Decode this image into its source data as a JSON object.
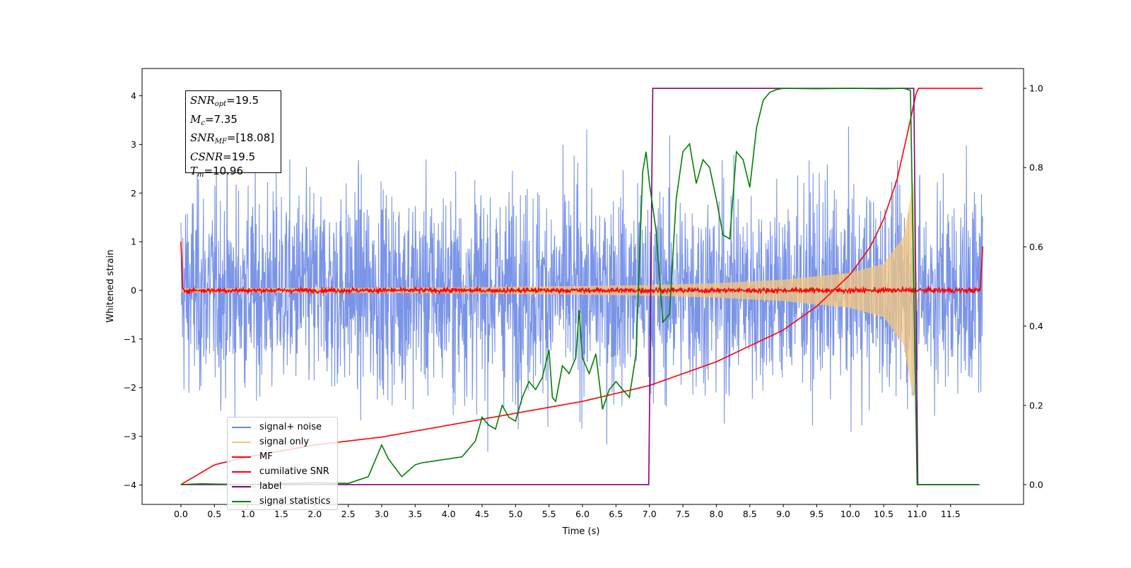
{
  "chart_data": {
    "type": "line",
    "xlabel": "Time (s)",
    "ylabel": "Whitened strain",
    "xlim": [
      -0.58,
      12.59
    ],
    "ylim_left": [
      -4.4,
      4.56
    ],
    "ylim_right": [
      -0.05,
      1.05
    ],
    "x_ticks": [
      0.0,
      0.5,
      1.0,
      1.5,
      2.0,
      2.5,
      3.0,
      3.5,
      4.0,
      4.5,
      5.0,
      5.5,
      6.0,
      6.5,
      7.0,
      7.5,
      8.0,
      8.5,
      9.0,
      9.5,
      10.0,
      10.5,
      11.0,
      11.5
    ],
    "x_tick_labels": [
      "0.0",
      "0.5",
      "1.0",
      "1.5",
      "2.0",
      "2.5",
      "3.0",
      "3.5",
      "4.0",
      "4.5",
      "5.0",
      "5.5",
      "6.0",
      "6.5",
      "7.0",
      "7.5",
      "8.0",
      "8.5",
      "9.0",
      "9.5",
      "10.0",
      "10.5",
      "11.0",
      "11.5"
    ],
    "y_ticks_left": [
      -4,
      -3,
      -2,
      -1,
      0,
      1,
      2,
      3,
      4
    ],
    "y_tick_labels_left": [
      "−4",
      "−3",
      "−2",
      "−1",
      "0",
      "1",
      "2",
      "3",
      "4"
    ],
    "y_ticks_right": [
      0.0,
      0.2,
      0.4,
      0.6,
      0.8,
      1.0
    ],
    "y_tick_labels_right": [
      "0.0",
      "0.2",
      "0.4",
      "0.6",
      "0.8",
      "1.0"
    ],
    "grid": false,
    "legend_placement": "lower-left",
    "series": [
      {
        "name": "signal+ noise",
        "axis": "left",
        "color": "#6b88e6",
        "description_range": [
          -4.0,
          4.1
        ]
      },
      {
        "name": "signal only",
        "axis": "left",
        "color": "#f5c77e",
        "envelope": {
          "x": [
            0.0,
            2.0,
            4.0,
            6.0,
            7.0,
            8.0,
            9.0,
            10.0,
            10.5,
            10.8,
            10.95,
            11.0
          ],
          "amp": [
            0.04,
            0.05,
            0.06,
            0.09,
            0.11,
            0.15,
            0.22,
            0.36,
            0.55,
            1.1,
            2.3,
            0.0
          ]
        }
      },
      {
        "name": "MF",
        "axis": "left",
        "color": "#ff0000",
        "level": 0.0,
        "edges": [
          [
            0.0,
            1.0
          ],
          [
            11.98,
            0.9
          ]
        ]
      },
      {
        "name": "cumilative SNR",
        "axis": "right",
        "color": "#ff0000",
        "x": [
          0.0,
          0.5,
          1.0,
          2.0,
          3.0,
          4.0,
          5.0,
          6.0,
          7.0,
          8.0,
          9.0,
          9.5,
          10.0,
          10.3,
          10.5,
          10.7,
          10.9,
          11.0,
          11.98
        ],
        "y": [
          0.0,
          0.05,
          0.07,
          0.1,
          0.12,
          0.15,
          0.18,
          0.21,
          0.25,
          0.31,
          0.39,
          0.45,
          0.53,
          0.6,
          0.67,
          0.77,
          0.92,
          1.0,
          1.0
        ]
      },
      {
        "name": "label",
        "axis": "right",
        "color": "#800080",
        "x": [
          0.0,
          6.99,
          7.05,
          10.95,
          11.01,
          11.93
        ],
        "y": [
          0.0,
          0.0,
          1.0,
          1.0,
          0.0,
          0.0
        ]
      },
      {
        "name": "signal statistics",
        "axis": "right",
        "color": "#008000",
        "x": [
          0.0,
          0.3,
          1.0,
          2.0,
          2.5,
          2.8,
          3.0,
          3.1,
          3.3,
          3.5,
          3.6,
          3.8,
          4.0,
          4.2,
          4.4,
          4.5,
          4.6,
          4.7,
          4.8,
          4.9,
          5.0,
          5.1,
          5.2,
          5.3,
          5.4,
          5.5,
          5.55,
          5.6,
          5.7,
          5.8,
          5.9,
          5.95,
          6.0,
          6.1,
          6.2,
          6.3,
          6.4,
          6.5,
          6.6,
          6.7,
          6.8,
          6.9,
          6.95,
          7.0,
          7.1,
          7.2,
          7.3,
          7.4,
          7.5,
          7.6,
          7.7,
          7.8,
          7.9,
          8.0,
          8.1,
          8.2,
          8.3,
          8.4,
          8.5,
          8.6,
          8.7,
          8.8,
          8.9,
          9.0,
          9.5,
          10.0,
          10.5,
          10.8,
          10.9,
          11.0,
          11.93
        ],
        "y": [
          0.0,
          0.002,
          0.0,
          0.005,
          0.003,
          0.02,
          0.1,
          0.065,
          0.02,
          0.05,
          0.055,
          0.06,
          0.065,
          0.07,
          0.11,
          0.17,
          0.15,
          0.14,
          0.2,
          0.17,
          0.16,
          0.22,
          0.26,
          0.24,
          0.27,
          0.34,
          0.22,
          0.21,
          0.3,
          0.28,
          0.32,
          0.44,
          0.32,
          0.28,
          0.33,
          0.19,
          0.24,
          0.26,
          0.24,
          0.22,
          0.33,
          0.79,
          0.84,
          0.76,
          0.64,
          0.41,
          0.43,
          0.72,
          0.84,
          0.86,
          0.76,
          0.82,
          0.8,
          0.72,
          0.63,
          0.62,
          0.84,
          0.82,
          0.75,
          0.9,
          0.97,
          0.99,
          0.997,
          1.0,
          0.999,
          1.0,
          0.999,
          1.0,
          0.995,
          0.0,
          0.0
        ]
      }
    ],
    "annotation": {
      "lines": [
        {
          "sym": "SNR",
          "sub": "opt",
          "val": "=19.5"
        },
        {
          "sym": "M",
          "sub": "c",
          "val": "=7.35"
        },
        {
          "sym": "SNR",
          "sub": "MF",
          "val": "=[18.08]"
        },
        {
          "sym": "CSNR",
          "sub": "",
          "val": "=19.5"
        },
        {
          "sym": "T",
          "sub": "m",
          "val": "=10.96"
        }
      ]
    }
  }
}
